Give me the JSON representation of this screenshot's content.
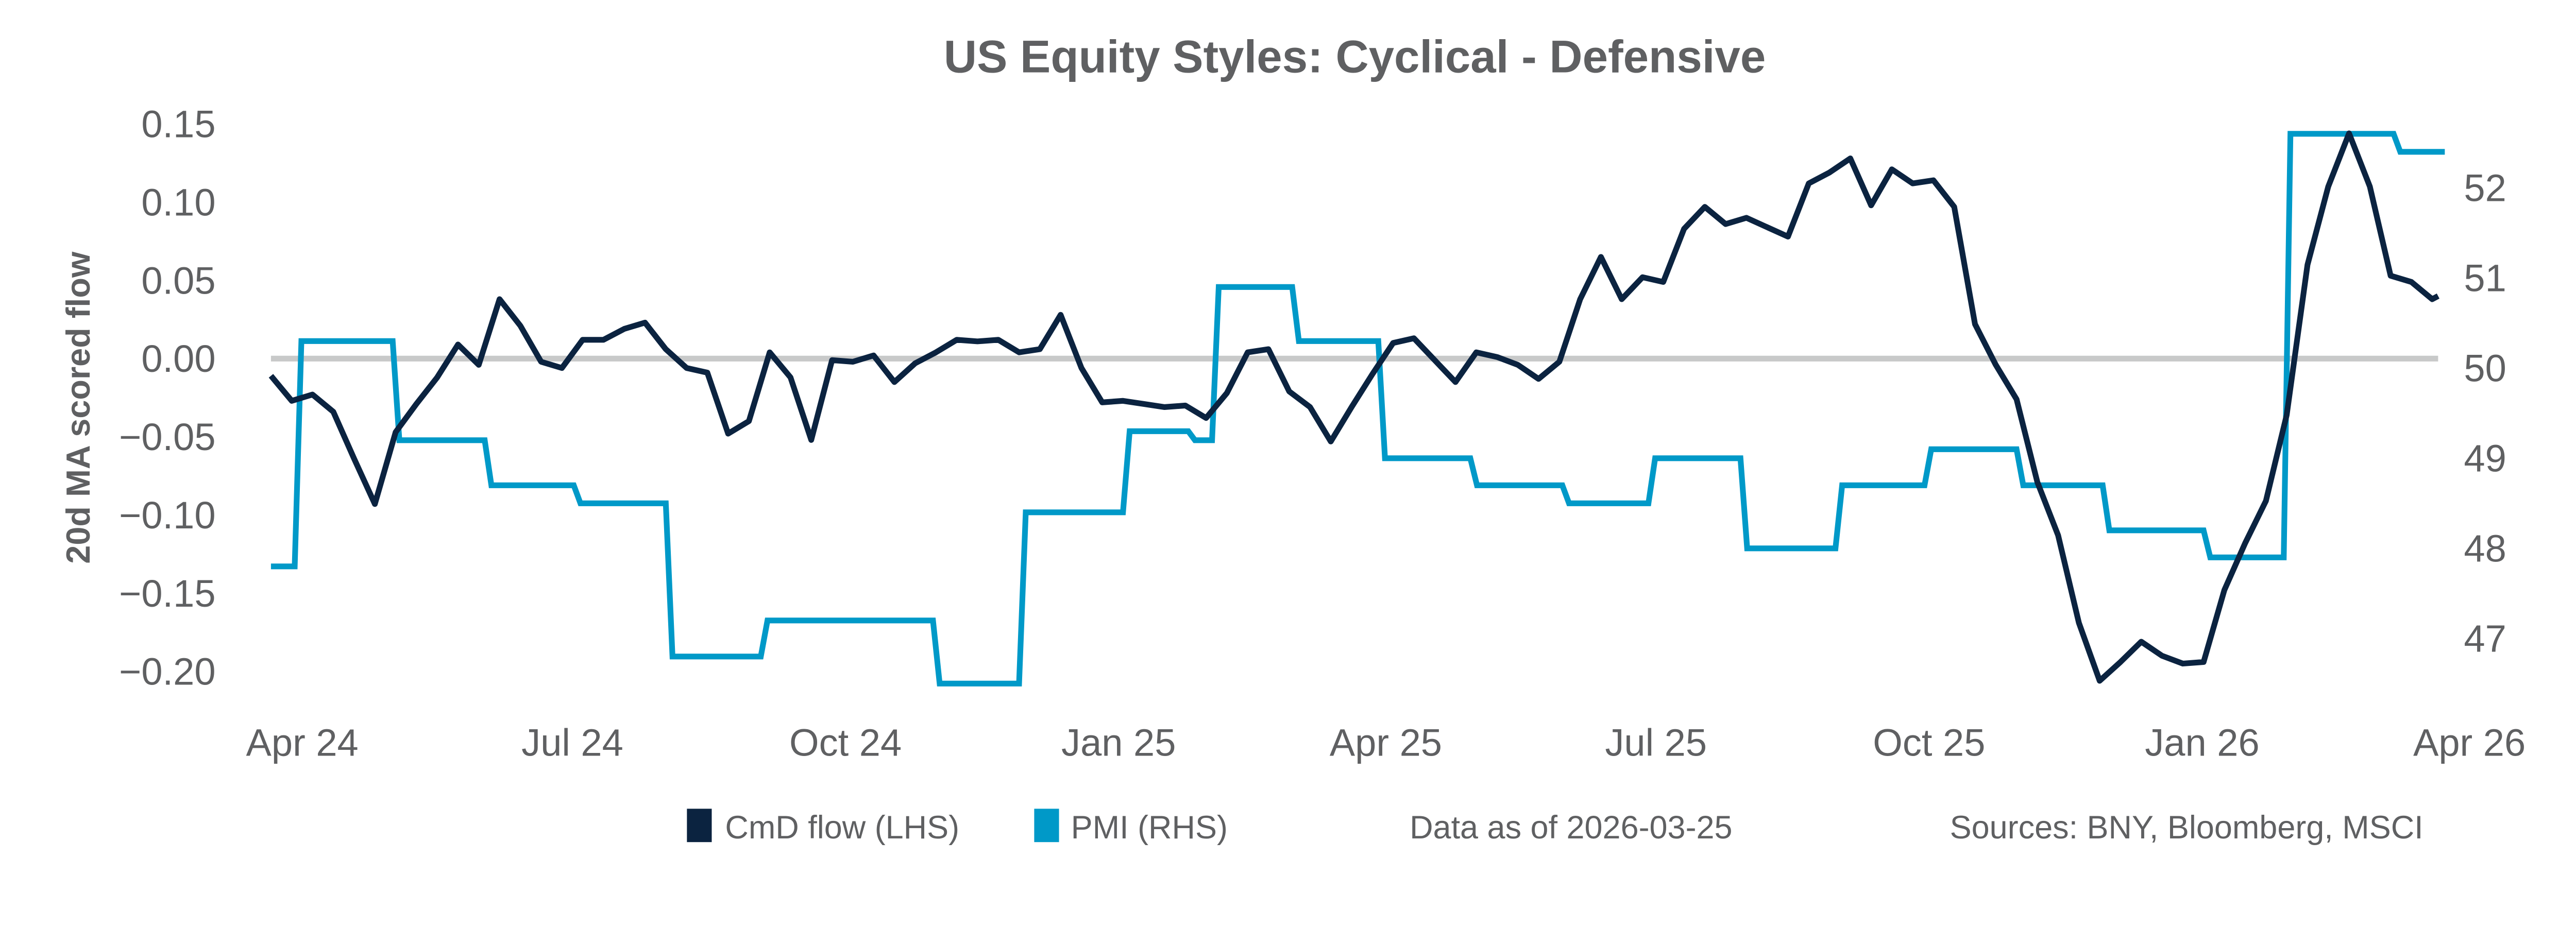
{
  "chart_data": {
    "type": "line",
    "title": "US Equity Styles:  Cyclical - Defensive",
    "ylabel": "20d MA scored flow",
    "y2label": "",
    "ylim": [
      -0.225,
      0.165
    ],
    "y2lim": [
      46.1,
      53.3
    ],
    "yticks": [
      "0.15",
      "0.10",
      "0.05",
      "0.00",
      "−0.05",
      "−0.10",
      "−0.15",
      "−0.20"
    ],
    "ytick_values": [
      0.15,
      0.1,
      0.05,
      0.0,
      -0.05,
      -0.1,
      -0.15,
      -0.2
    ],
    "y2ticks": [
      "52",
      "51",
      "50",
      "49",
      "48",
      "47"
    ],
    "y2tick_values": [
      52,
      51,
      50,
      49,
      48,
      47
    ],
    "xticks": [
      "Apr 24",
      "Jul 24",
      "Oct 24",
      "Jan 25",
      "Apr 25",
      "Jul 25",
      "Oct 25",
      "Jan 26",
      "Apr 26"
    ],
    "xtick_dates": [
      "2024-04-01",
      "2024-07-01",
      "2024-10-01",
      "2025-01-01",
      "2025-04-01",
      "2025-07-01",
      "2025-10-01",
      "2026-01-01",
      "2026-04-01"
    ],
    "xlim": [
      "2024-03-25",
      "2026-04-05"
    ],
    "reference_line": 0,
    "grid": false,
    "legend_position": "bottom",
    "note": "Data as of 2026-03-25",
    "sources": "Sources:  BNY, Bloomberg, MSCI",
    "series": [
      {
        "name": "CmD flow (LHS)",
        "axis": "left",
        "color": "#0b2340",
        "dates": [
          "2024-03-25",
          "2024-04-01",
          "2024-04-08",
          "2024-04-15",
          "2024-04-22",
          "2024-04-29",
          "2024-05-06",
          "2024-05-13",
          "2024-05-20",
          "2024-05-27",
          "2024-06-03",
          "2024-06-10",
          "2024-06-17",
          "2024-06-24",
          "2024-07-01",
          "2024-07-08",
          "2024-07-15",
          "2024-07-22",
          "2024-07-29",
          "2024-08-05",
          "2024-08-12",
          "2024-08-19",
          "2024-08-26",
          "2024-09-02",
          "2024-09-09",
          "2024-09-16",
          "2024-09-23",
          "2024-09-30",
          "2024-10-07",
          "2024-10-14",
          "2024-10-21",
          "2024-10-28",
          "2024-11-04",
          "2024-11-11",
          "2024-11-18",
          "2024-11-25",
          "2024-12-02",
          "2024-12-09",
          "2024-12-16",
          "2024-12-23",
          "2024-12-30",
          "2025-01-06",
          "2025-01-13",
          "2025-01-20",
          "2025-01-27",
          "2025-02-03",
          "2025-02-10",
          "2025-02-17",
          "2025-02-24",
          "2025-03-03",
          "2025-03-10",
          "2025-03-17",
          "2025-03-24",
          "2025-03-31",
          "2025-04-07",
          "2025-04-14",
          "2025-04-21",
          "2025-04-28",
          "2025-05-05",
          "2025-05-12",
          "2025-05-19",
          "2025-05-26",
          "2025-06-02",
          "2025-06-09",
          "2025-06-16",
          "2025-06-23",
          "2025-06-30",
          "2025-07-07",
          "2025-07-14",
          "2025-07-21",
          "2025-07-28",
          "2025-08-04",
          "2025-08-11",
          "2025-08-18",
          "2025-08-25",
          "2025-09-01",
          "2025-09-08",
          "2025-09-15",
          "2025-09-22",
          "2025-09-29",
          "2025-10-06",
          "2025-10-13",
          "2025-10-20",
          "2025-10-27",
          "2025-11-03",
          "2025-11-10",
          "2025-11-17",
          "2025-11-24",
          "2025-12-01",
          "2025-12-08",
          "2025-12-15",
          "2025-12-22",
          "2025-12-29",
          "2026-01-05",
          "2026-01-12",
          "2026-01-19",
          "2026-01-26",
          "2026-02-02",
          "2026-02-09",
          "2026-02-16",
          "2026-02-23",
          "2026-03-02",
          "2026-03-09",
          "2026-03-16",
          "2026-03-23",
          "2026-03-25"
        ],
        "values": [
          -0.011,
          -0.027,
          -0.023,
          -0.034,
          -0.064,
          -0.093,
          -0.047,
          -0.029,
          -0.012,
          0.009,
          -0.004,
          0.038,
          0.021,
          -0.002,
          -0.006,
          0.012,
          0.012,
          0.019,
          0.023,
          0.006,
          -0.006,
          -0.009,
          -0.048,
          -0.04,
          0.004,
          -0.012,
          -0.052,
          -0.001,
          -0.002,
          0.002,
          -0.015,
          -0.003,
          0.004,
          0.012,
          0.011,
          0.012,
          0.004,
          0.006,
          0.028,
          -0.006,
          -0.028,
          -0.027,
          -0.029,
          -0.031,
          -0.03,
          -0.038,
          -0.022,
          0.004,
          0.006,
          -0.021,
          -0.031,
          -0.053,
          -0.031,
          -0.01,
          0.01,
          0.013,
          -0.001,
          -0.015,
          0.004,
          0.001,
          -0.004,
          -0.013,
          -0.002,
          0.038,
          0.065,
          0.038,
          0.052,
          0.049,
          0.083,
          0.097,
          0.086,
          0.09,
          0.084,
          0.078,
          0.112,
          0.119,
          0.128,
          0.098,
          0.121,
          0.112,
          0.114,
          0.097,
          0.022,
          -0.004,
          -0.026,
          -0.079,
          -0.113,
          -0.169,
          -0.206,
          -0.194,
          -0.181,
          -0.19,
          -0.195,
          -0.194,
          -0.148,
          -0.118,
          -0.091,
          -0.036,
          0.06,
          0.11,
          0.144,
          0.11,
          0.053,
          0.049,
          0.038,
          0.04
        ]
      },
      {
        "name": "PMI (RHS)",
        "axis": "right",
        "color": "#0099c8",
        "step": true,
        "dates": [
          "2024-03-25",
          "2024-04-02",
          "2024-05-05",
          "2024-06-05",
          "2024-07-05",
          "2024-08-05",
          "2024-09-06",
          "2024-11-03",
          "2024-12-02",
          "2025-01-06",
          "2025-01-28",
          "2025-02-05",
          "2025-03-04",
          "2025-04-02",
          "2025-05-03",
          "2025-06-03",
          "2025-07-02",
          "2025-08-02",
          "2025-09-03",
          "2025-10-03",
          "2025-11-03",
          "2025-12-02",
          "2026-01-05",
          "2026-02-01",
          "2026-03-10",
          "2026-03-25"
        ],
        "values": [
          47.8,
          50.3,
          49.2,
          48.7,
          48.5,
          46.8,
          47.2,
          46.5,
          48.4,
          49.3,
          49.2,
          50.9,
          50.3,
          49.0,
          48.7,
          48.5,
          49.0,
          48.0,
          48.7,
          49.1,
          48.7,
          48.2,
          47.9,
          52.6,
          52.4,
          52.4
        ]
      }
    ]
  }
}
